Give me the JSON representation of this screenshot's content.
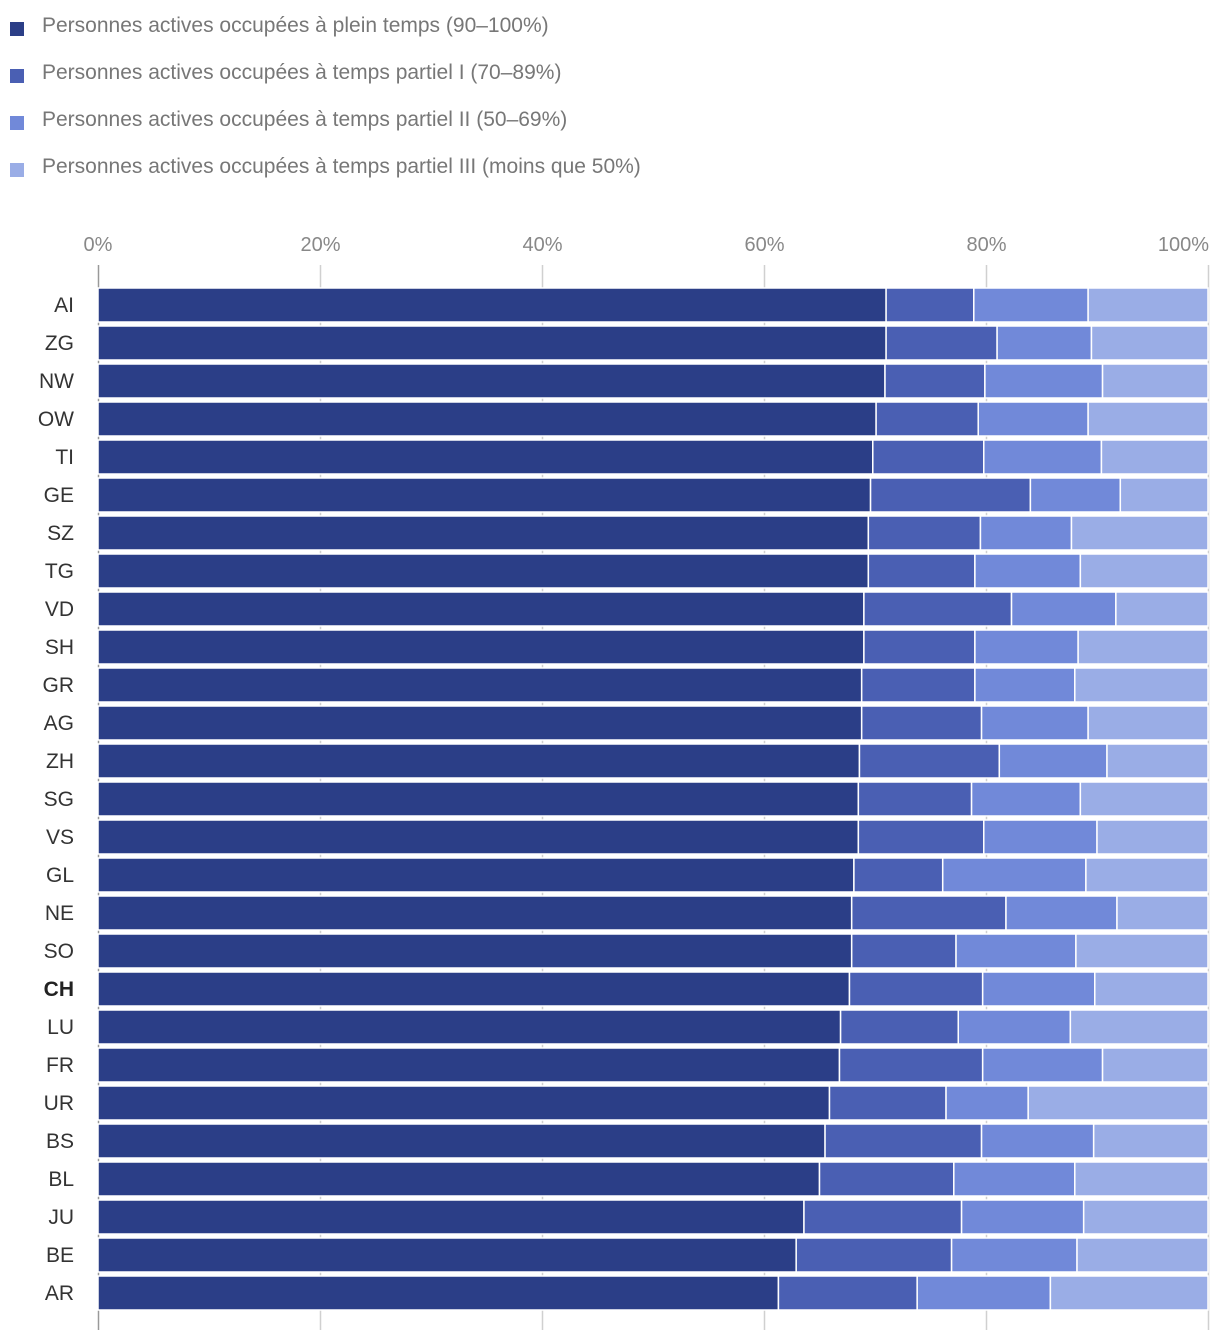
{
  "chart_data": {
    "type": "bar",
    "orientation": "horizontal",
    "stacked": true,
    "xlim": [
      0,
      100
    ],
    "x_ticks": [
      "0%",
      "20%",
      "40%",
      "60%",
      "80%",
      "100%"
    ],
    "grid": true,
    "legend_position": "top-left",
    "highlighted_category": "CH",
    "categories": [
      "AI",
      "ZG",
      "NW",
      "OW",
      "TI",
      "GE",
      "SZ",
      "TG",
      "VD",
      "SH",
      "GR",
      "AG",
      "ZH",
      "SG",
      "VS",
      "GL",
      "NE",
      "SO",
      "CH",
      "LU",
      "FR",
      "UR",
      "BS",
      "BL",
      "JU",
      "BE",
      "AR"
    ],
    "series": [
      {
        "name": "Personnes actives occupées à plein temps (90–100%)",
        "color": "#2b3e87",
        "values": [
          71.0,
          71.0,
          70.9,
          70.1,
          69.8,
          69.6,
          69.4,
          69.4,
          69.0,
          69.0,
          68.8,
          68.8,
          68.6,
          68.5,
          68.5,
          68.1,
          67.9,
          67.9,
          67.7,
          66.9,
          66.8,
          65.9,
          65.5,
          65.0,
          63.6,
          62.9,
          61.3
        ]
      },
      {
        "name": "Personnes actives occupées à temps partiel I (70–89%)",
        "color": "#4a5fb3",
        "values": [
          7.9,
          10.0,
          9.0,
          9.2,
          10.0,
          14.4,
          10.1,
          9.6,
          13.3,
          10.0,
          10.2,
          10.8,
          12.6,
          10.2,
          11.3,
          8.0,
          13.9,
          9.4,
          12.0,
          10.6,
          12.9,
          10.5,
          14.1,
          12.1,
          14.2,
          14.0,
          12.5
        ]
      },
      {
        "name": "Personnes actives occupées à temps partiel II (50–69%)",
        "color": "#7189d9",
        "values": [
          10.3,
          8.5,
          10.6,
          9.9,
          10.6,
          8.1,
          8.2,
          9.5,
          9.4,
          9.3,
          9.0,
          9.6,
          9.7,
          9.8,
          10.2,
          12.9,
          10.0,
          10.8,
          10.1,
          10.1,
          10.8,
          7.4,
          10.1,
          10.9,
          11.0,
          11.3,
          12.0
        ]
      },
      {
        "name": "Personnes actives occupées à temps partiel III (moins que 50%)",
        "color": "#9aade6",
        "values": [
          10.8,
          10.5,
          9.5,
          10.8,
          9.6,
          7.9,
          12.3,
          11.5,
          8.3,
          11.7,
          12.0,
          10.8,
          9.1,
          11.5,
          10.0,
          11.0,
          8.2,
          11.9,
          10.2,
          12.4,
          9.5,
          16.2,
          10.3,
          12.0,
          11.2,
          11.8,
          14.2
        ]
      }
    ]
  }
}
